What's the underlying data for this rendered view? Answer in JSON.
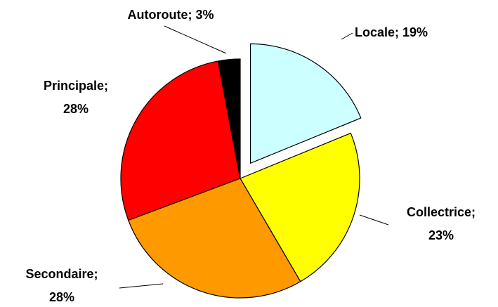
{
  "chart_data": {
    "type": "pie",
    "categories": [
      "Locale;",
      "Collectrice;",
      "Secondaire;",
      "Principale;",
      "Autoroute;"
    ],
    "values": [
      19,
      23,
      28,
      28,
      3
    ],
    "value_labels": [
      "19%",
      "23%",
      "28%",
      "28%",
      "3%"
    ],
    "colors": [
      "#ccffff",
      "#ffff00",
      "#ff9900",
      "#ff0000",
      "#000000"
    ],
    "exploded": [
      "Locale;"
    ]
  }
}
